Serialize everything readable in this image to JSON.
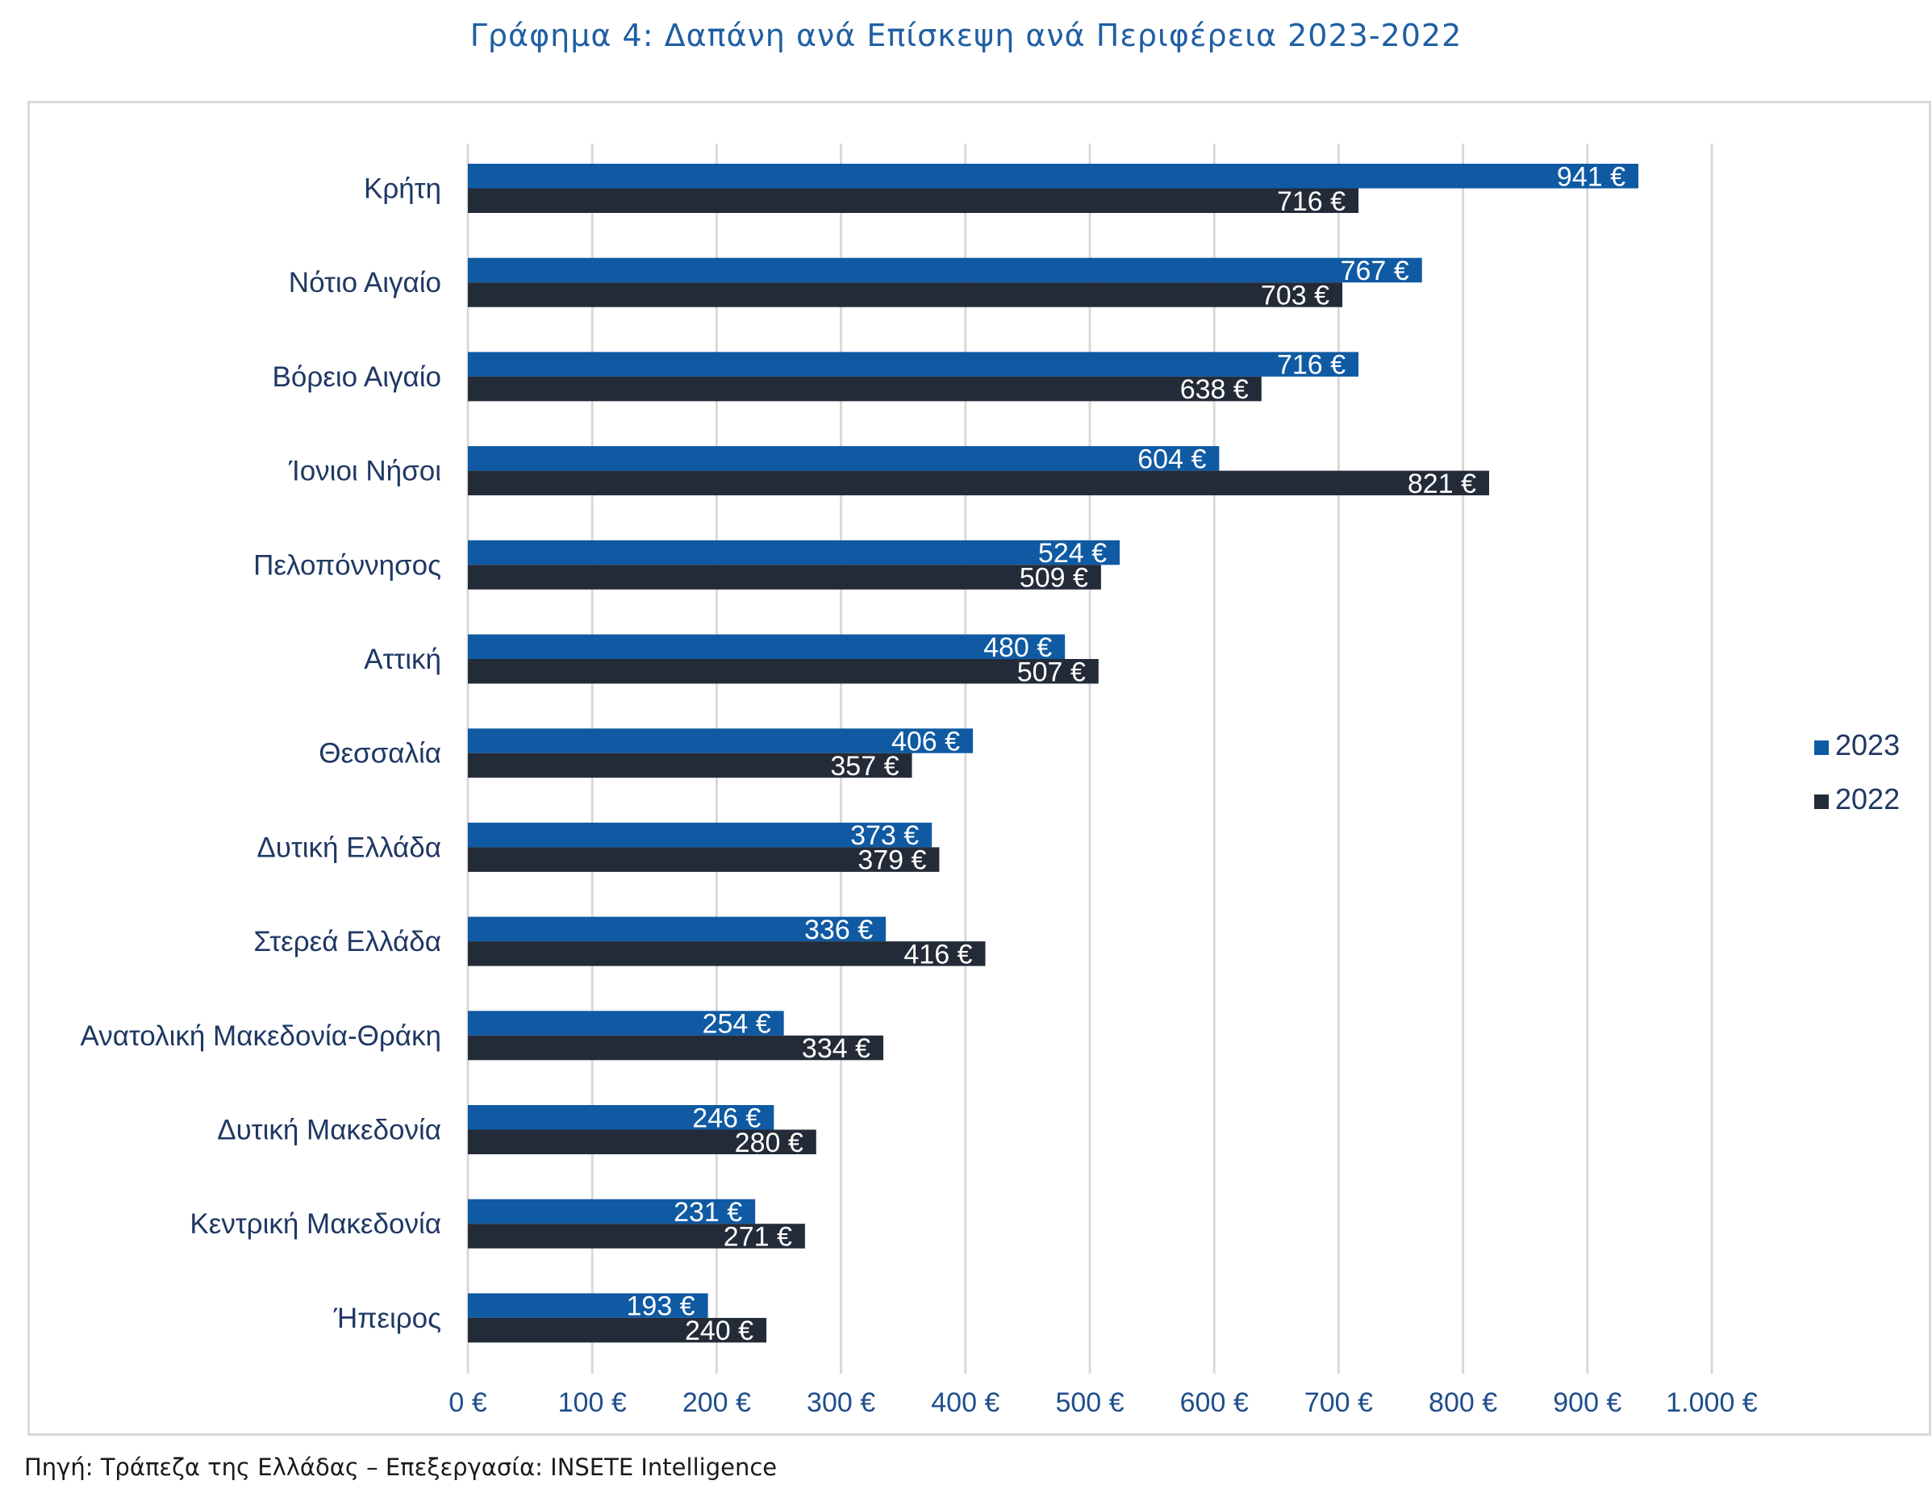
{
  "title": "Γράφημα 4: Δαπάνη ανά Επίσκεψη ανά Περιφέρεια 2023-2022",
  "source": "Πηγή: Τράπεζα της Ελλάδας – Επεξεργασία: INSETE Intelligence",
  "chart_data": {
    "type": "bar",
    "orientation": "horizontal",
    "categories": [
      "Κρήτη",
      "Νότιο Αιγαίο",
      "Βόρειο Αιγαίο",
      "Ίονιοι Νήσοι",
      "Πελοπόννησος",
      "Αττική",
      "Θεσσαλία",
      "Δυτική Ελλάδα",
      "Στερεά Ελλάδα",
      "Ανατολική Μακεδονία-Θράκη",
      "Δυτική Μακεδονία",
      "Κεντρική Μακεδονία",
      "Ήπειρος"
    ],
    "series": [
      {
        "name": "2023",
        "color": "#0f5aa3",
        "values": [
          941,
          767,
          716,
          604,
          524,
          480,
          406,
          373,
          336,
          254,
          246,
          231,
          193
        ],
        "labels": [
          "941 €",
          "767 €",
          "716 €",
          "604 €",
          "524 €",
          "480 €",
          "406 €",
          "373 €",
          "336 €",
          "254 €",
          "246 €",
          "231 €",
          "193 €"
        ]
      },
      {
        "name": "2022",
        "color": "#242b38",
        "values": [
          716,
          703,
          638,
          821,
          509,
          507,
          357,
          379,
          416,
          334,
          280,
          271,
          240
        ],
        "labels": [
          "716 €",
          "703 €",
          "638 €",
          "821 €",
          "509 €",
          "507 €",
          "357 €",
          "379 €",
          "416 €",
          "334 €",
          "280 €",
          "271 €",
          "240 €"
        ]
      }
    ],
    "xlim": [
      0,
      1000
    ],
    "xticks": [
      0,
      100,
      200,
      300,
      400,
      500,
      600,
      700,
      800,
      900,
      1000
    ],
    "xtick_labels": [
      "0 €",
      "100 €",
      "200 €",
      "300 €",
      "400 €",
      "500 €",
      "600 €",
      "700 €",
      "800 €",
      "900 €",
      "1.000 €"
    ],
    "grid": true,
    "legend": "right"
  }
}
